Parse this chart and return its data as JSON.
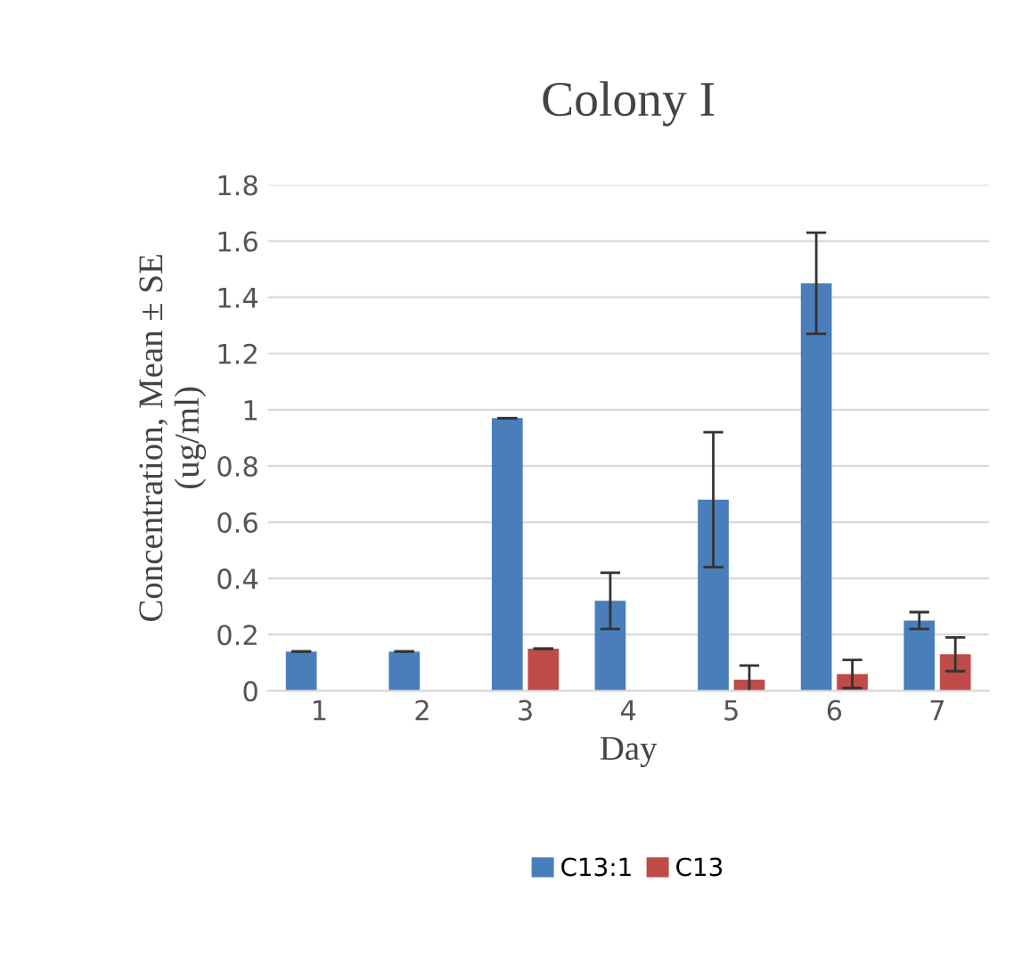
{
  "chart_data": {
    "type": "bar",
    "title": "Colony I",
    "xlabel": "Day",
    "ylabel": "Concentration, Mean ± SE\n(ug/ml)",
    "categories": [
      "1",
      "2",
      "3",
      "4",
      "5",
      "6",
      "7"
    ],
    "series": [
      {
        "name": "C13:1",
        "color": "#4a7ebb",
        "values": [
          0.14,
          0.14,
          0.97,
          0.32,
          0.68,
          1.45,
          0.25
        ],
        "errors": [
          null,
          null,
          null,
          0.1,
          0.24,
          0.18,
          0.03
        ]
      },
      {
        "name": "C13",
        "color": "#be4b48",
        "values": [
          null,
          null,
          0.15,
          null,
          0.04,
          0.06,
          0.13
        ],
        "errors": [
          null,
          null,
          null,
          null,
          0.05,
          0.05,
          0.06
        ]
      }
    ],
    "ylim": [
      0,
      1.8
    ],
    "yticks": [
      0,
      0.2,
      0.4,
      0.6,
      0.8,
      1,
      1.2,
      1.4,
      1.6,
      1.8
    ],
    "grid": "y",
    "legend": "bottom"
  }
}
